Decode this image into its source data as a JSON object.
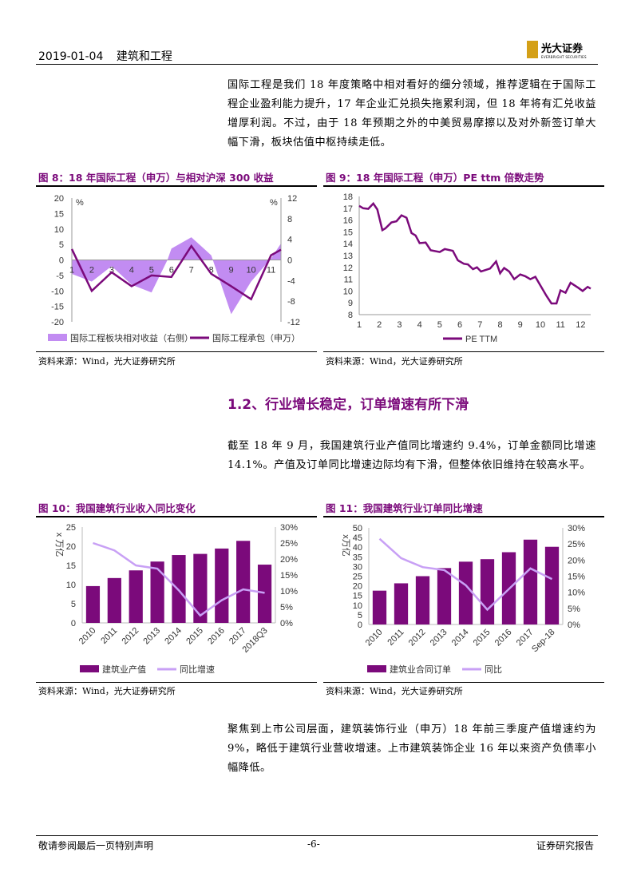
{
  "header": {
    "date": "2019-01-04",
    "industry": "建筑和工程",
    "logo_cn": "光大证券",
    "logo_en": "EVERBRIGHT SECURITIES"
  },
  "para1": "国际工程是我们 18 年度策略中相对看好的细分领域，推荐逻辑在于国际工程企业盈利能力提升，17 年企业汇兑损失拖累利润，但 18 年将有汇兑收益增厚利润。不过，由于 18 年预期之外的中美贸易摩擦以及对外新签订单大幅下滑，板块估值中枢持续走低。",
  "section_title": "1.2、行业增长稳定，订单增速有所下滑",
  "para2": "截至 18 年 9 月，我国建筑行业产值同比增速约 9.4%，订单金额同比增速 14.1%。产值及订单同比增速边际均有下滑，但整体依旧维持在较高水平。",
  "para3": "聚焦到上市公司层面，建筑装饰行业（申万）18 年前三季度产值增速约为 9%，略低于建筑行业营收增速。上市建筑装饰企业 16 年以来资产负债率小幅降低。",
  "source": "资料来源：Wind，光大证券研究所",
  "footer": {
    "left": "敬请参阅最后一页特别声明",
    "page": "-6-",
    "right": "证券研究报告"
  },
  "colors": {
    "accent": "#7b0a7b",
    "area": "#c28cf2",
    "line_light": "#c8a0f5"
  },
  "chart_data": [
    {
      "id": "fig8",
      "type": "line+area",
      "title": "图 8：18 年国际工程（申万）与相对沪深 300 收益",
      "x_ticks": [
        1,
        2,
        3,
        4,
        5,
        6,
        7,
        8,
        9,
        10,
        11
      ],
      "xlim": [
        1,
        11.5
      ],
      "y_left": {
        "unit": "%",
        "ylim": [
          -20,
          20
        ],
        "ticks": [
          20,
          15,
          10,
          5,
          0,
          -5,
          -10,
          -15,
          -20
        ]
      },
      "y_right": {
        "unit": "%",
        "ylim": [
          -12,
          12
        ],
        "ticks": [
          12,
          8,
          4,
          0,
          -4,
          -8,
          -12
        ]
      },
      "series": [
        {
          "name": "国际工程板块相对收益（右侧）",
          "kind": "area",
          "axis": "right",
          "x": [
            1,
            2,
            3,
            4,
            5,
            5.8,
            6,
            7,
            8,
            9,
            10,
            11,
            11.5
          ],
          "values": [
            -2.7,
            -4.2,
            -1.2,
            -4.8,
            -6.3,
            0,
            2.2,
            4.4,
            0.9,
            -10.5,
            -4.2,
            0.3,
            3.2
          ]
        },
        {
          "name": "国际工程承包（申万）",
          "kind": "line",
          "axis": "left",
          "x": [
            1,
            2,
            3,
            4,
            5,
            6,
            7,
            8,
            9,
            10,
            11,
            11.5
          ],
          "values": [
            3.5,
            -10,
            -4,
            -8.5,
            -5,
            -5.5,
            4.5,
            -4.5,
            -8.5,
            -12.7,
            1.5,
            3.3
          ]
        }
      ]
    },
    {
      "id": "fig9",
      "type": "line",
      "title": "图 9：18 年国际工程（申万）PE ttm 倍数走势",
      "x_ticks": [
        1,
        2,
        3,
        4,
        5,
        6,
        7,
        8,
        9,
        10,
        11,
        12
      ],
      "xlim": [
        1,
        12.5
      ],
      "ylim": [
        8,
        18
      ],
      "y_ticks": [
        18,
        17,
        16,
        15,
        14,
        13,
        12,
        11,
        10,
        9,
        8
      ],
      "series": [
        {
          "name": "PE TTM",
          "x": [
            1,
            1.2,
            1.45,
            1.7,
            1.9,
            2.15,
            2.3,
            2.6,
            2.85,
            3.1,
            3.35,
            3.6,
            3.8,
            4.0,
            4.3,
            4.55,
            5.0,
            5.25,
            5.65,
            5.9,
            6.2,
            6.4,
            6.65,
            6.85,
            7.05,
            7.5,
            7.8,
            8.0,
            8.2,
            8.45,
            8.7,
            9.0,
            9.25,
            9.5,
            9.75,
            10.3,
            10.55,
            10.8,
            11.0,
            11.25,
            11.5,
            11.9,
            12.1,
            12.35,
            12.5
          ],
          "values": [
            17.2,
            17.0,
            16.95,
            17.4,
            16.9,
            15.15,
            15.3,
            15.8,
            15.9,
            16.4,
            16.2,
            14.9,
            14.7,
            14.05,
            14.1,
            13.45,
            13.3,
            13.55,
            13.4,
            12.6,
            12.3,
            12.25,
            11.85,
            12.0,
            11.65,
            11.9,
            12.5,
            11.5,
            11.95,
            11.65,
            11.0,
            11.4,
            11.25,
            11.0,
            11.2,
            9.6,
            8.95,
            8.95,
            10.05,
            9.85,
            10.7,
            10.25,
            10.0,
            10.35,
            10.2
          ]
        }
      ]
    },
    {
      "id": "fig10",
      "type": "bar+line",
      "title": "图 10：我国建筑行业收入同比变化",
      "ylabel": "x 万亿",
      "categories": [
        "2010",
        "2011",
        "2012",
        "2013",
        "2014",
        "2015",
        "2016",
        "2017",
        "2018Q3"
      ],
      "ylim": [
        0,
        25
      ],
      "y_ticks": [
        25,
        20,
        15,
        10,
        5,
        0
      ],
      "y2lim": [
        0,
        30
      ],
      "y2_ticks": [
        "30%",
        "25%",
        "20%",
        "15%",
        "10%",
        "5%",
        "0%"
      ],
      "series": [
        {
          "name": "建筑业产值",
          "kind": "bar",
          "values": [
            9.6,
            11.7,
            13.7,
            16.0,
            17.7,
            18.0,
            19.4,
            21.4,
            15.2
          ]
        },
        {
          "name": "同比增速",
          "kind": "line",
          "axis": "right",
          "values": [
            25.0,
            22.7,
            18.0,
            17.0,
            10.2,
            2.3,
            7.1,
            10.5,
            9.4
          ]
        }
      ]
    },
    {
      "id": "fig11",
      "type": "bar+line",
      "title": "图 11：我国建筑行业订单同比增速",
      "ylabel": "x万亿",
      "categories": [
        "2010",
        "2011",
        "2012",
        "2013",
        "2014",
        "2015",
        "2016",
        "2017",
        "Sep-18"
      ],
      "ylim": [
        0,
        50
      ],
      "y_ticks": [
        50,
        45,
        40,
        35,
        30,
        25,
        20,
        15,
        10,
        5,
        0
      ],
      "y2lim": [
        0,
        30
      ],
      "y2_ticks": [
        "30%",
        "25%",
        "20%",
        "15%",
        "10%",
        "5%",
        "0%"
      ],
      "series": [
        {
          "name": "建筑业合同订单",
          "kind": "bar",
          "values": [
            17.5,
            21.3,
            25.0,
            29.2,
            32.5,
            33.8,
            37.4,
            43.9,
            40.2
          ]
        },
        {
          "name": "同比",
          "kind": "line",
          "axis": "right",
          "values": [
            26.6,
            20.6,
            17.8,
            16.9,
            12.2,
            4.6,
            11.0,
            17.4,
            14.1
          ]
        }
      ]
    }
  ]
}
